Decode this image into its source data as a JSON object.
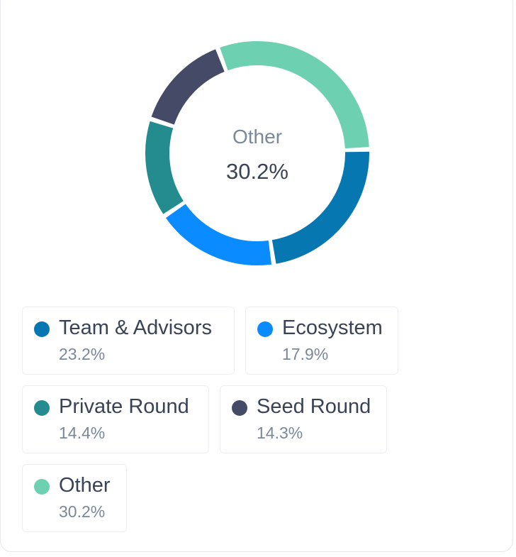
{
  "center": {
    "label": "Other",
    "value": "30.2%"
  },
  "colors": {
    "team_advisors": "#0777b2",
    "ecosystem": "#0a8bff",
    "private_round": "#248c8f",
    "seed_round": "#454b66",
    "other": "#6dd0b1"
  },
  "legend": [
    {
      "label": "Team & Advisors",
      "value": "23.2%",
      "color": "#0777b2"
    },
    {
      "label": "Ecosystem",
      "value": "17.9%",
      "color": "#0a8bff"
    },
    {
      "label": "Private Round",
      "value": "14.4%",
      "color": "#248c8f"
    },
    {
      "label": "Seed Round",
      "value": "14.3%",
      "color": "#454b66"
    },
    {
      "label": "Other",
      "value": "30.2%",
      "color": "#6dd0b1"
    }
  ],
  "chart_data": {
    "type": "pie",
    "variant": "donut",
    "categories": [
      "Team & Advisors",
      "Ecosystem",
      "Private Round",
      "Seed Round",
      "Other"
    ],
    "values": [
      23.2,
      17.9,
      14.4,
      14.3,
      30.2
    ],
    "unit": "%",
    "colors": [
      "#0777b2",
      "#0a8bff",
      "#248c8f",
      "#454b66",
      "#6dd0b1"
    ],
    "legend_position": "bottom"
  }
}
